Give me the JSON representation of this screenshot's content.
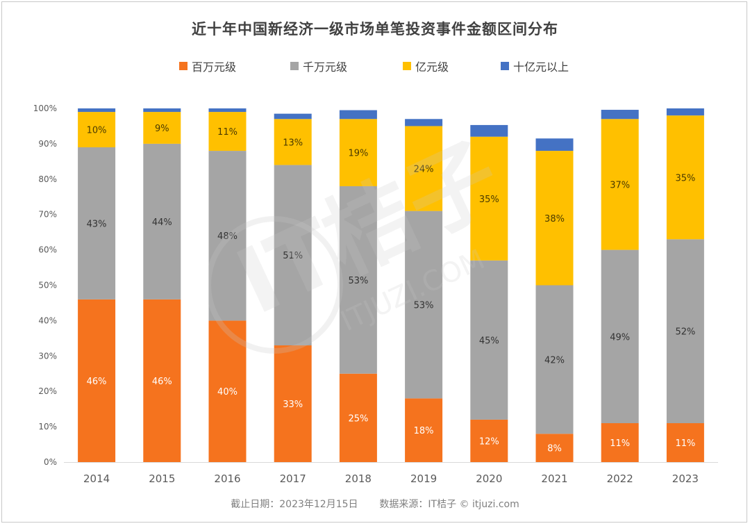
{
  "title": "近十年中国新经济一级市场单笔投资事件金额区间分布",
  "footer": {
    "date_text": "截止日期：2023年12月15日",
    "source_text": "数据来源：IT桔子 © itjuzi.com"
  },
  "watermark": {
    "text_main": "IT桔子",
    "text_sub": "ITJUZI.COM"
  },
  "chart_data": {
    "type": "bar",
    "stacked": true,
    "title": "近十年中国新经济一级市场单笔投资事件金额区间分布",
    "xlabel": "",
    "ylabel": "",
    "categories": [
      "2014",
      "2015",
      "2016",
      "2017",
      "2018",
      "2019",
      "2020",
      "2021",
      "2022",
      "2023"
    ],
    "ylim": [
      0,
      100
    ],
    "yticks": [
      "0%",
      "10%",
      "20%",
      "30%",
      "40%",
      "50%",
      "60%",
      "70%",
      "80%",
      "90%",
      "100%"
    ],
    "grid": false,
    "legend_position": "top-center",
    "series": [
      {
        "name": "百万元级",
        "color": "#f5731e",
        "label_color": "#ffffff",
        "values": [
          46,
          46,
          40,
          33,
          25,
          18,
          12,
          8,
          11,
          11
        ],
        "labels": [
          "46%",
          "46%",
          "40%",
          "33%",
          "25%",
          "18%",
          "12%",
          "8%",
          "11%",
          "11%"
        ]
      },
      {
        "name": "千万元级",
        "color": "#a5a5a5",
        "label_color": "#333333",
        "values": [
          43,
          44,
          48,
          51,
          53,
          53,
          45,
          42,
          49,
          52
        ],
        "labels": [
          "43%",
          "44%",
          "48%",
          "51%",
          "53%",
          "53%",
          "45%",
          "42%",
          "49%",
          "52%"
        ]
      },
      {
        "name": "亿元级",
        "color": "#ffc000",
        "label_color": "#4a3a00",
        "values": [
          10,
          9,
          11,
          13,
          19,
          24,
          35,
          38,
          37,
          35
        ],
        "labels": [
          "10%",
          "9%",
          "11%",
          "13%",
          "19%",
          "24%",
          "35%",
          "38%",
          "37%",
          "35%"
        ]
      },
      {
        "name": "十亿元以上",
        "color": "#4472c4",
        "label_color": "#ffffff",
        "values": [
          1,
          1,
          1,
          1.5,
          2.5,
          2,
          3.3,
          3.5,
          2.6,
          2
        ],
        "labels": []
      }
    ]
  }
}
